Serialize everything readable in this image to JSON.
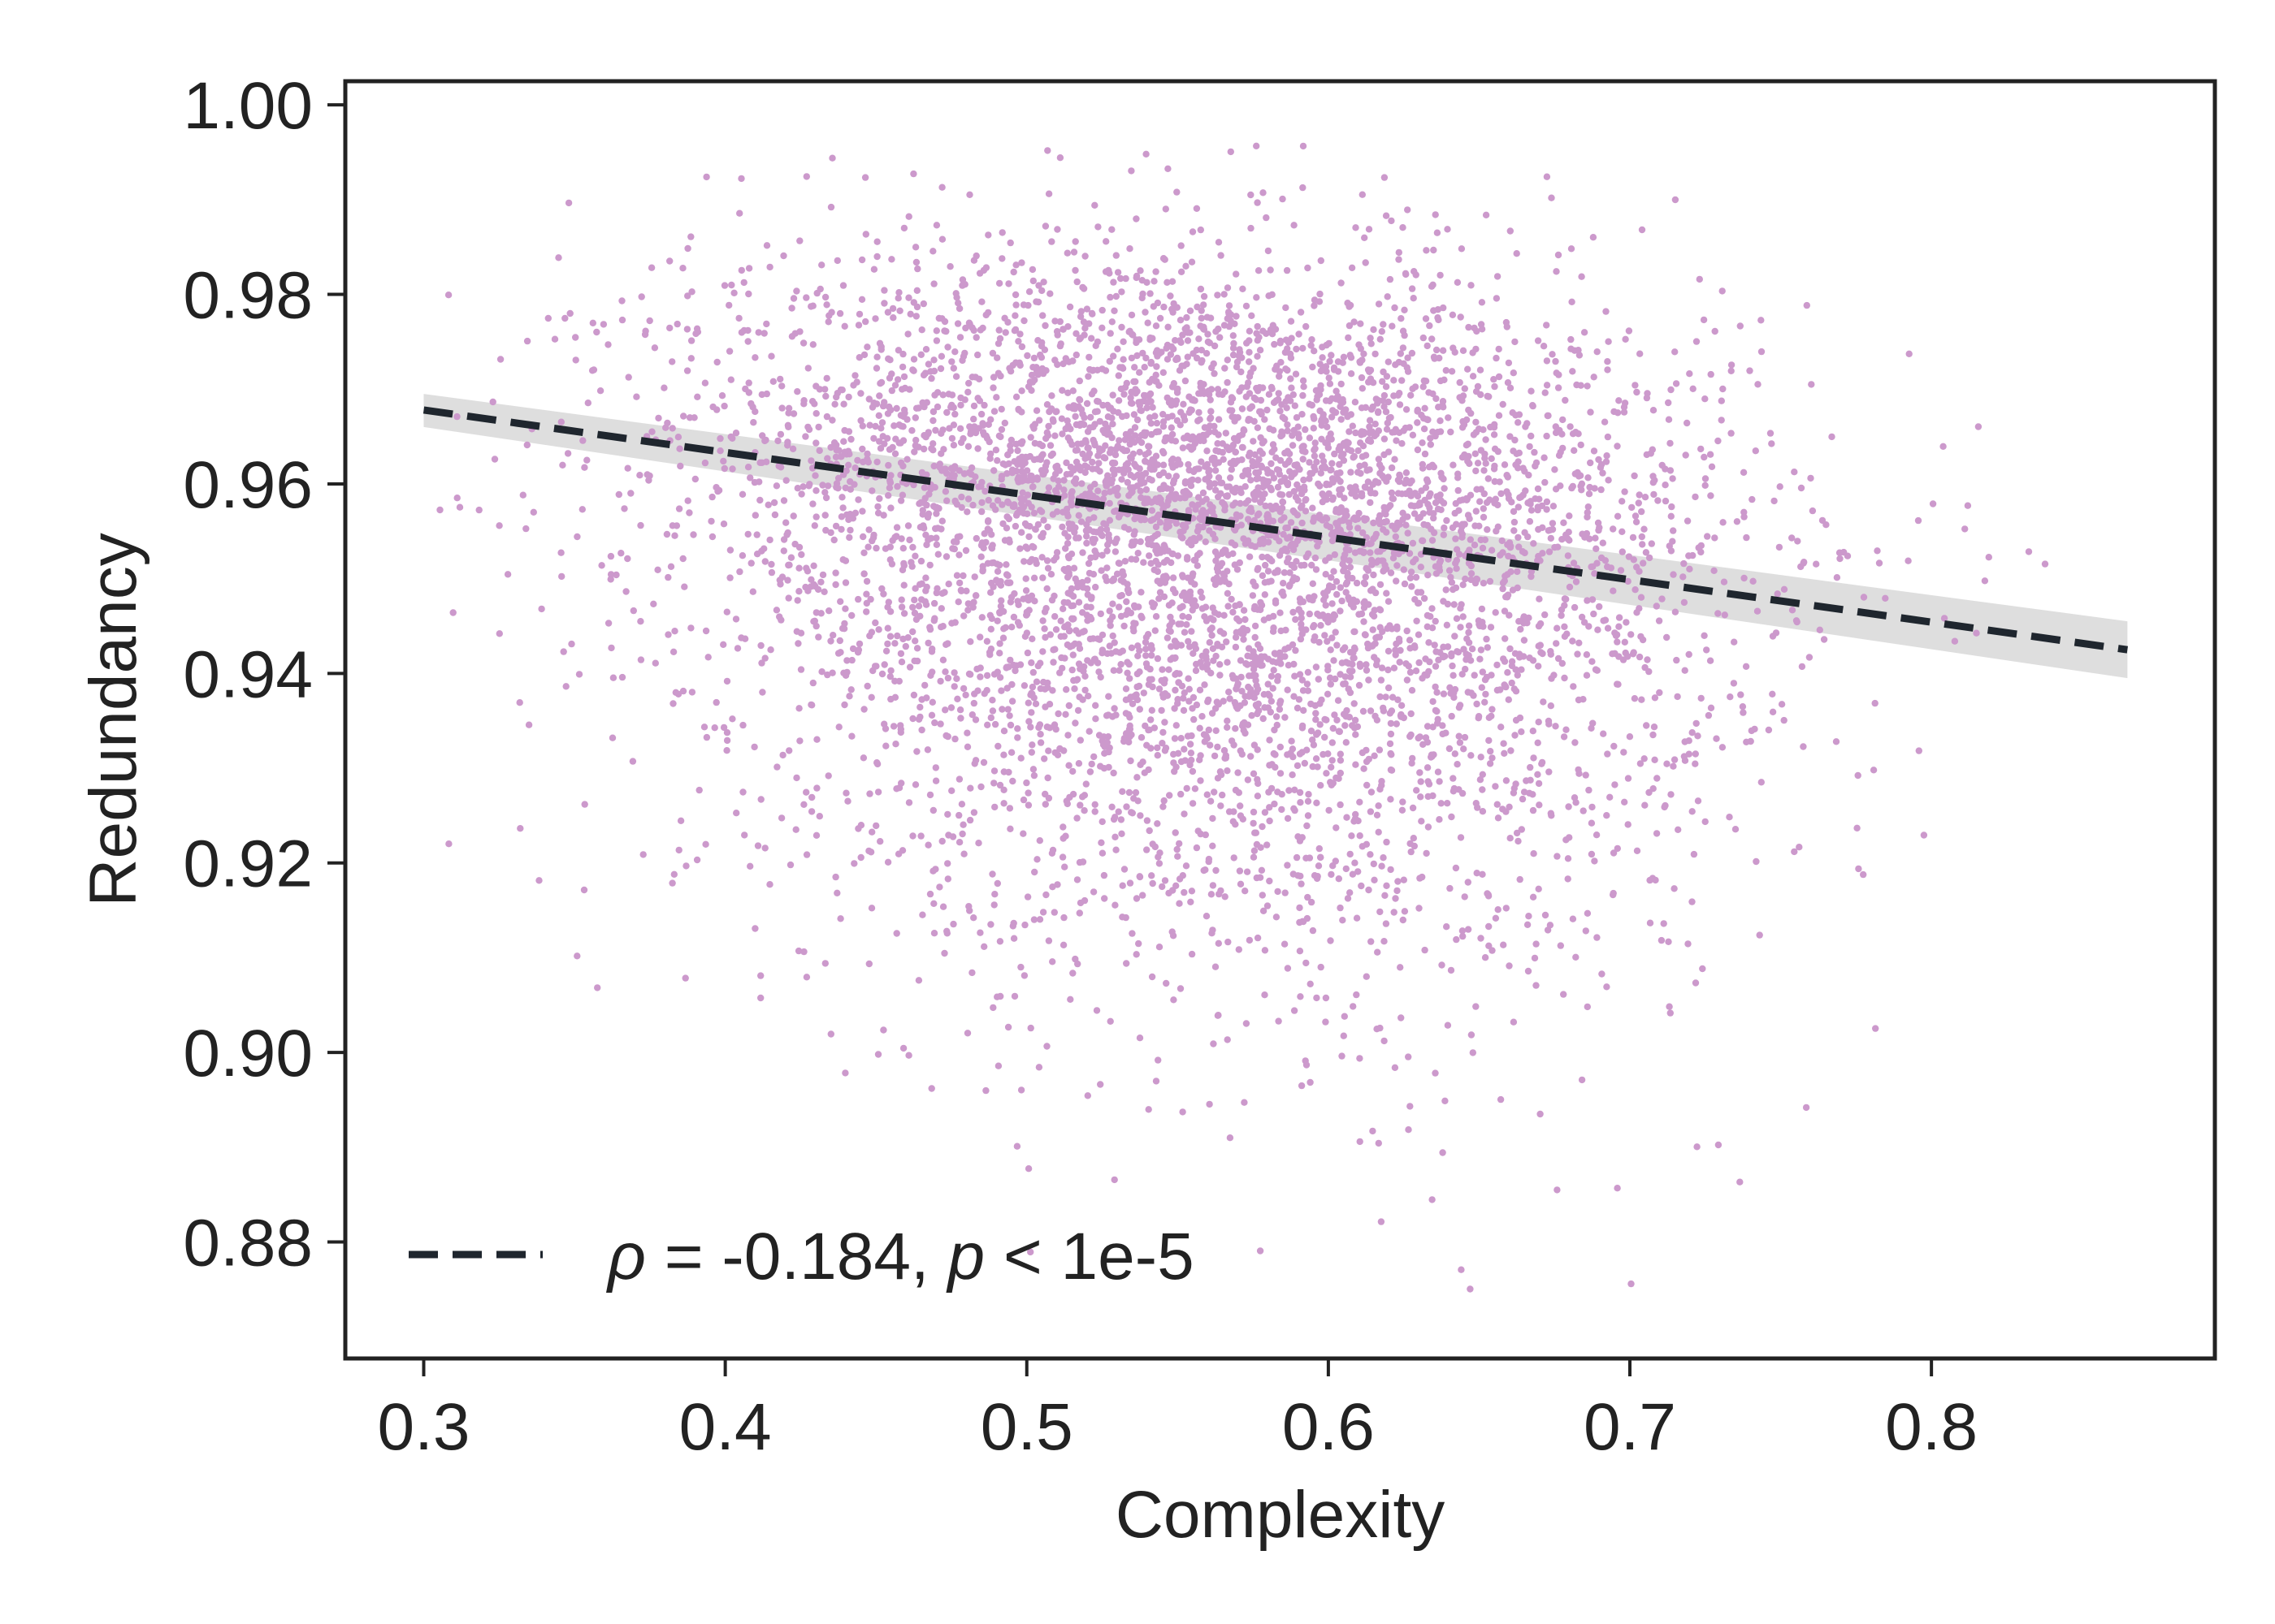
{
  "chart_data": {
    "type": "scatter",
    "xlabel": "Complexity",
    "ylabel": "Redundancy",
    "xlim": [
      0.274,
      0.894
    ],
    "ylim": [
      0.8677,
      1.0025
    ],
    "x_ticks": [
      "0.3",
      "0.4",
      "0.5",
      "0.6",
      "0.7",
      "0.8"
    ],
    "y_ticks": [
      "0.88",
      "0.90",
      "0.92",
      "0.94",
      "0.96",
      "0.98",
      "1.00"
    ],
    "grid": false,
    "point_color": "#cc99cc",
    "line_color": "#1f262e",
    "band_color": "#c8c8c8",
    "scatter_summary": {
      "approx_points": 6000,
      "x_center": 0.56,
      "x_spread": 0.085,
      "x_range": [
        0.305,
        0.865
      ],
      "y_center": 0.955,
      "y_spread": 0.02,
      "y_range": [
        0.873,
        0.996
      ]
    },
    "series": [
      {
        "kind": "regression",
        "x": [
          0.3,
          0.865
        ],
        "y": [
          0.9678,
          0.9425
        ],
        "confidence_band": {
          "x": [
            0.3,
            0.865
          ],
          "lower": [
            0.966,
            0.9395
          ],
          "upper": [
            0.9695,
            0.9455
          ]
        },
        "style": "dashed"
      }
    ],
    "legend": {
      "placement": "lower-left",
      "rho_symbol": "ρ",
      "rho_rest": " = -0.184, ",
      "p_symbol": "p",
      "p_rest": " < 1e-5"
    }
  }
}
